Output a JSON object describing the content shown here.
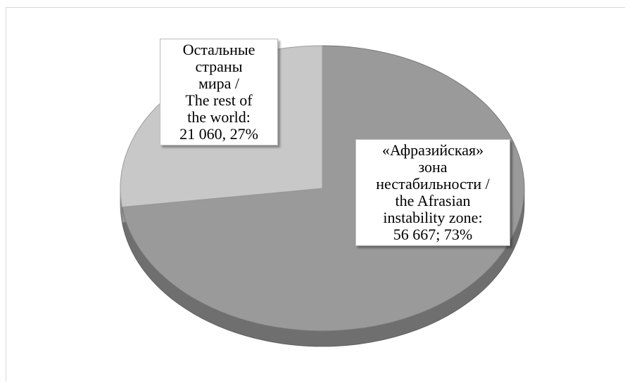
{
  "chart_data": {
    "type": "pie",
    "style": "3d",
    "slices": [
      {
        "name": "«Афразийская» зона нестабильности / the Afrasian instability zone",
        "value": 56667,
        "percent": 73,
        "color": "#9a9a9a",
        "label_lines": [
          "«Афразийская»",
          "зона",
          "нестабильности /",
          "the Afrasian",
          "instability zone:",
          "56 667; 73%"
        ]
      },
      {
        "name": "Остальные страны мира / The rest of the world",
        "value": 21060,
        "percent": 27,
        "color": "#c8c8c8",
        "label_lines": [
          "Остальные",
          "страны",
          "мира /",
          "The rest of",
          "the world:",
          "21 060, 27%"
        ]
      }
    ],
    "legend": "none",
    "grid": false
  }
}
